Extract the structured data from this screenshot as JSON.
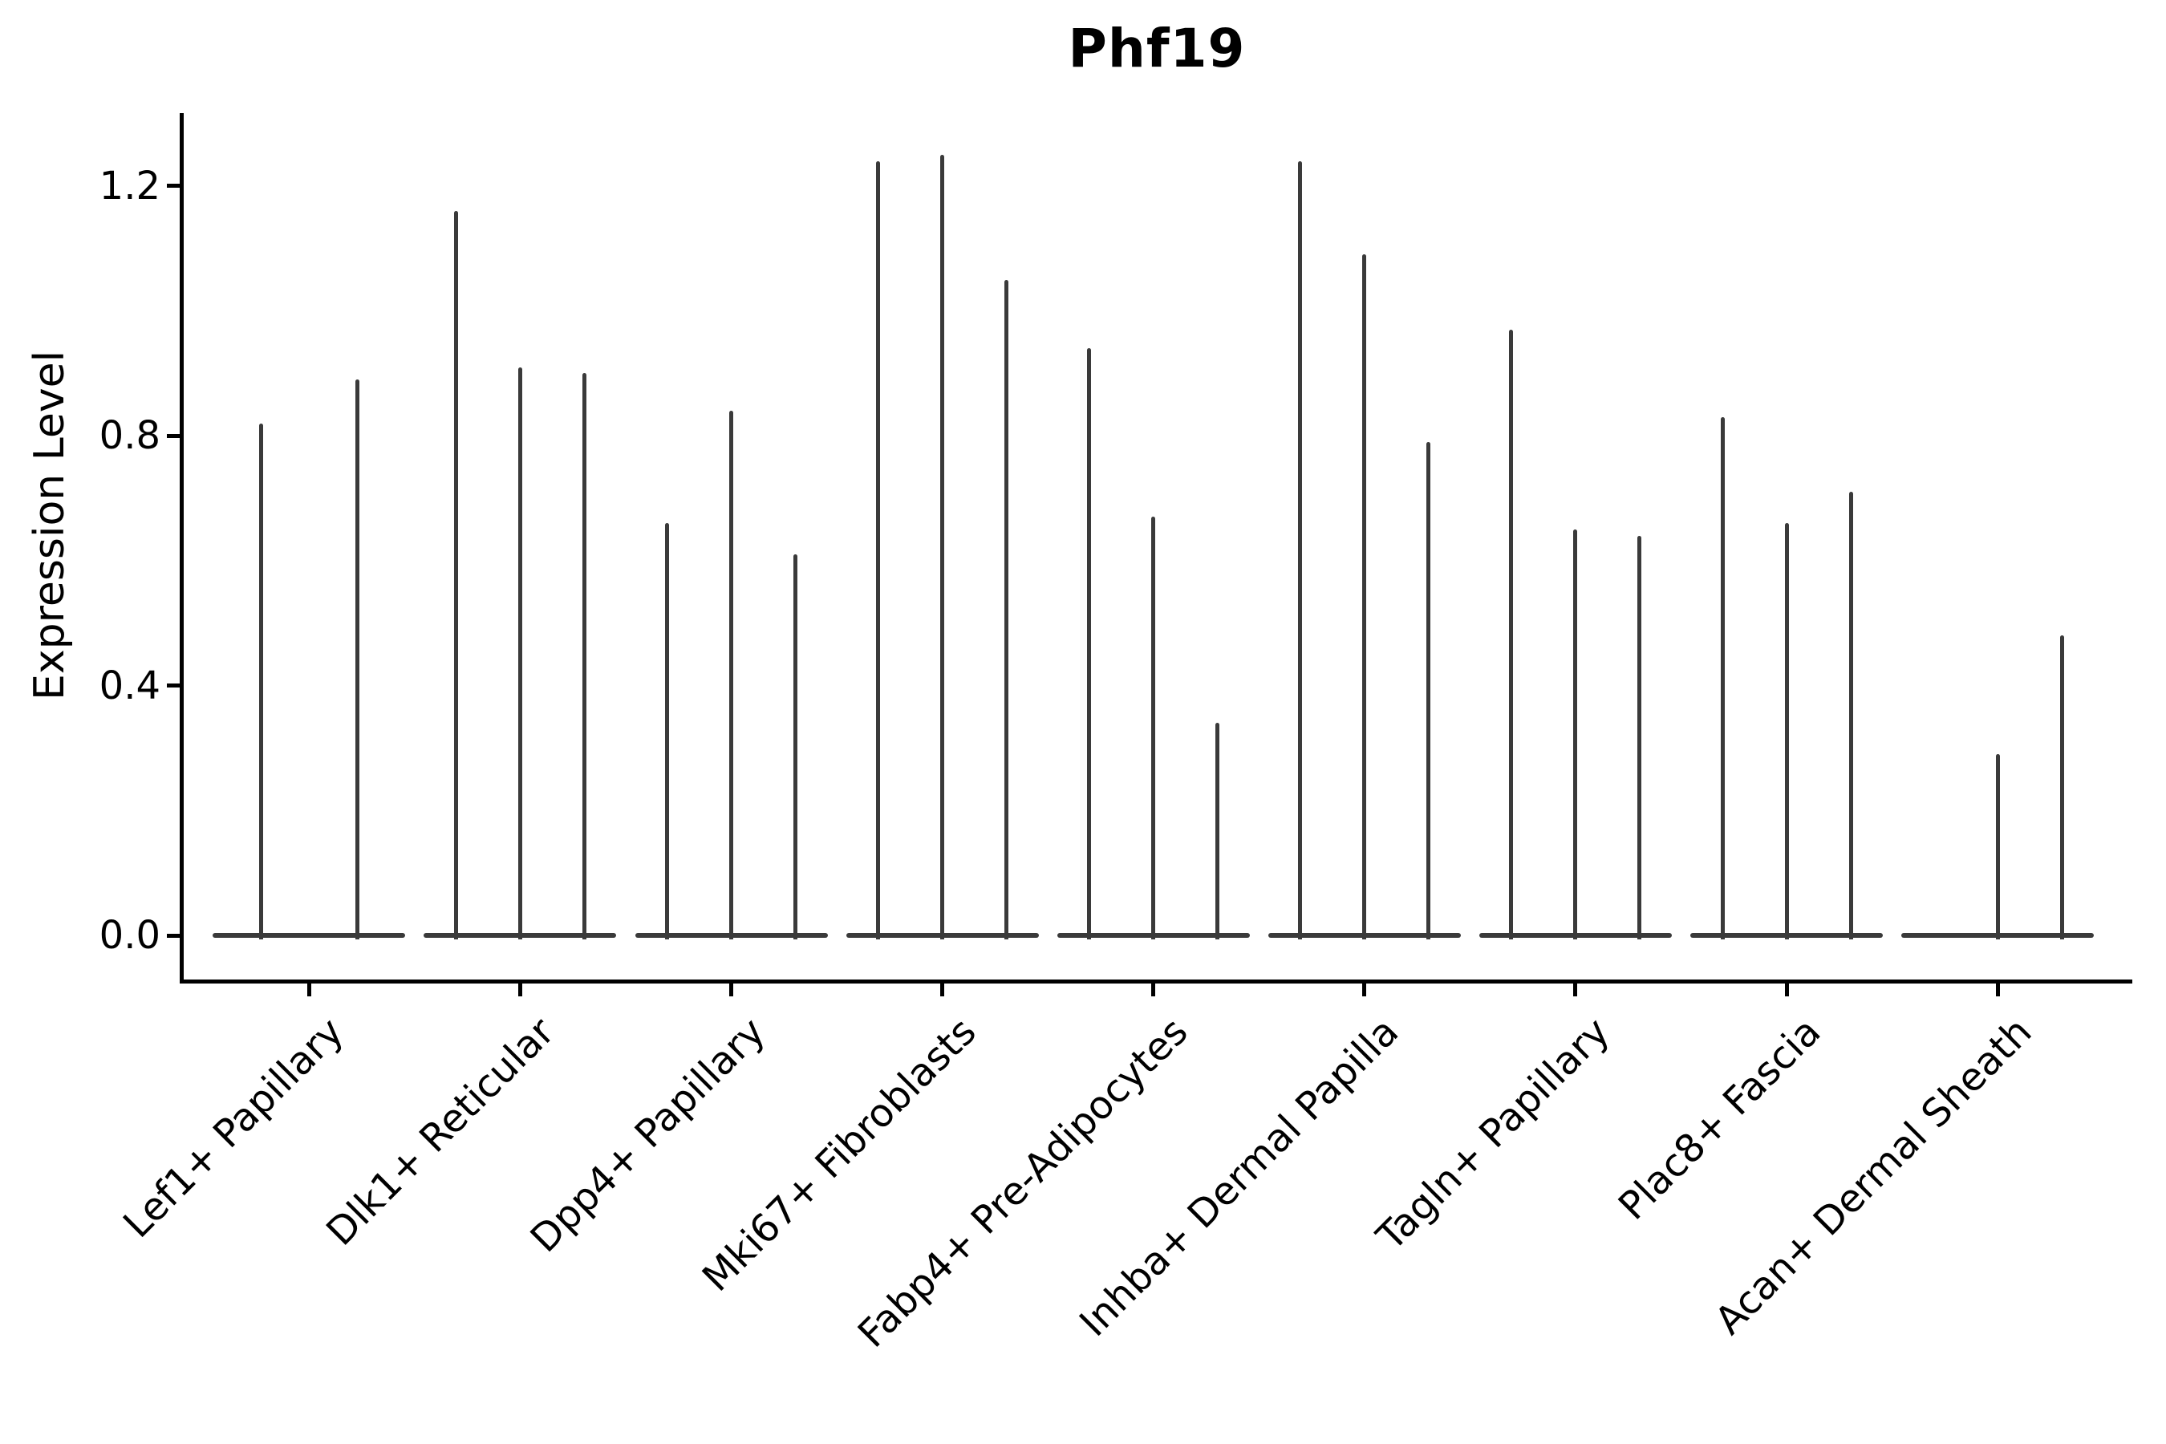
{
  "title": "Phf19",
  "axes": {
    "ylabel": "Expression Level",
    "ytick_labels": [
      "0.0",
      "0.4",
      "0.8",
      "1.2"
    ]
  },
  "colors": {
    "background": "#ffffff",
    "violin": "#3a3a3a",
    "axis": "#000000",
    "text": "#000000"
  },
  "chart_data": {
    "type": "violin",
    "title": "Phf19",
    "xlabel": "",
    "ylabel": "Expression Level",
    "categories": [
      "Lef1+ Papillary",
      "Dlk1+ Reticular",
      "Dpp4+ Papillary",
      "Mki67+ Fibroblasts",
      "Fabp4+ Pre-Adipocytes",
      "Inhba+ Dermal Papilla",
      "Tagln+ Papillary",
      "Plac8+ Fascia",
      "Acan+ Dermal Sheath"
    ],
    "groups": [
      {
        "category": "Lef1+ Papillary",
        "violin_peaks": [
          0.82,
          0.89
        ]
      },
      {
        "category": "Dlk1+ Reticular",
        "violin_peaks": [
          1.16,
          0.91,
          0.9
        ]
      },
      {
        "category": "Dpp4+ Papillary",
        "violin_peaks": [
          0.66,
          0.84,
          0.61
        ]
      },
      {
        "category": "Mki67+ Fibroblasts",
        "violin_peaks": [
          1.24,
          1.25,
          1.05
        ]
      },
      {
        "category": "Fabp4+ Pre-Adipocytes",
        "violin_peaks": [
          0.94,
          0.67,
          0.34
        ]
      },
      {
        "category": "Inhba+ Dermal Papilla",
        "violin_peaks": [
          1.24,
          1.09,
          0.79
        ]
      },
      {
        "category": "Tagln+ Papillary",
        "violin_peaks": [
          0.97,
          0.65,
          0.64
        ]
      },
      {
        "category": "Plac8+ Fascia",
        "violin_peaks": [
          0.83,
          0.66,
          0.71
        ]
      },
      {
        "category": "Acan+ Dermal Sheath",
        "violin_peaks": [
          0.0,
          0.29,
          0.48
        ]
      }
    ],
    "violin_description": "Each category holds narrow violins (one per sample); bodies are flat at 0 with a thin spike up to the listed peak expression value; a peak of 0 means a completely flat violin.",
    "yticks": [
      0.0,
      0.4,
      0.8,
      1.2
    ],
    "ylim": [
      -0.07,
      1.32
    ],
    "grid": false,
    "legend": "none"
  }
}
